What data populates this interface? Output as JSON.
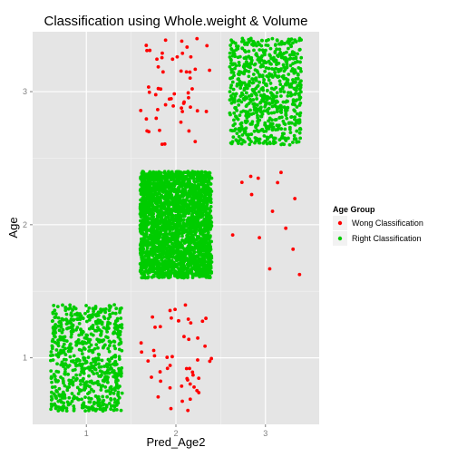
{
  "chart_data": {
    "type": "scatter",
    "title": "Classification using Whole.weight & Volume",
    "xlabel": "Pred_Age2",
    "ylabel": "Age",
    "xlim": [
      0.4,
      3.6
    ],
    "ylim": [
      0.5,
      3.45
    ],
    "x_ticks": [
      1,
      2,
      3
    ],
    "y_ticks": [
      1,
      2,
      3
    ],
    "x_tick_labels": [
      "1",
      "2",
      "3"
    ],
    "y_tick_labels": [
      "1",
      "2",
      "3"
    ],
    "grid": true,
    "legend_position": "right",
    "legend": {
      "title": "Age Group",
      "entries": [
        {
          "label": "Wong Classification",
          "color": "#ff0000"
        },
        {
          "label": "Right Classification",
          "color": "#00cc00"
        }
      ]
    },
    "jitter": 0.4,
    "cells": [
      {
        "pred": 1,
        "age": 1,
        "group": "Right Classification",
        "count": 700,
        "color": "#00cc00"
      },
      {
        "pred": 2,
        "age": 2,
        "group": "Right Classification",
        "count": 2600,
        "color": "#00cc00"
      },
      {
        "pred": 3,
        "age": 3,
        "group": "Right Classification",
        "count": 750,
        "color": "#00cc00"
      },
      {
        "pred": 2,
        "age": 1,
        "group": "Wong Classification",
        "count": 50,
        "color": "#ff0000"
      },
      {
        "pred": 2,
        "age": 3,
        "group": "Wong Classification",
        "count": 55,
        "color": "#ff0000"
      },
      {
        "pred": 3,
        "age": 2,
        "group": "Wong Classification",
        "count": 14,
        "color": "#ff0000"
      }
    ],
    "colors": {
      "panel": "#e5e5e5",
      "grid_major": "#ffffff",
      "grid_minor": "#f2f2f2",
      "tick_label": "#7f7f7f"
    }
  }
}
